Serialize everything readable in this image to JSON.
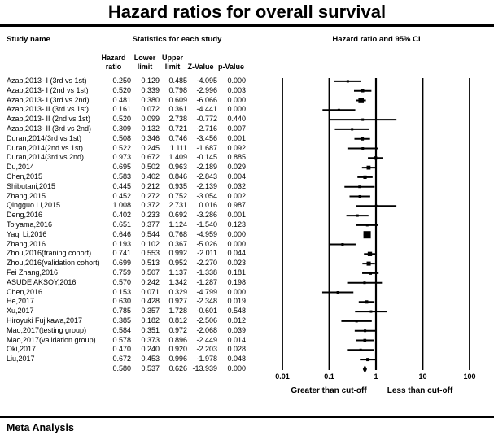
{
  "title": "Hazard ratios for overall survival",
  "header": {
    "study_col": "Study name",
    "stats_col": "Statistics for each study",
    "plot_col": "Hazard ratio and 95% CI",
    "sub": {
      "hazard_l1": "Hazard",
      "hazard_l2": "ratio",
      "lower_l1": "Lower",
      "lower_l2": "limit",
      "upper_l1": "Upper",
      "upper_l2": "limit",
      "z": "Z-Value",
      "p": "p-Value"
    }
  },
  "chart_data": {
    "type": "forest",
    "title": "Hazard ratios for overall survival",
    "x_scale": "log10",
    "x_range": [
      0.01,
      100
    ],
    "x_ticks": [
      0.01,
      0.1,
      1,
      10,
      100
    ],
    "x_tick_labels": [
      "0.01",
      "0.1",
      "1",
      "10",
      "100"
    ],
    "reference_line": 1,
    "axis_annotations": {
      "left": "Greater than cut-off",
      "right": "Less than cut-off"
    },
    "studies": [
      {
        "name": "Azab,2013- I (3rd vs 1st)",
        "hr": "0.250",
        "lower": "0.129",
        "upper": "0.485",
        "z": "-4.095",
        "p": "0.000"
      },
      {
        "name": "Azab,2013- I (2nd vs 1st)",
        "hr": "0.520",
        "lower": "0.339",
        "upper": "0.798",
        "z": "-2.996",
        "p": "0.003"
      },
      {
        "name": "Azab,2013- I (3rd vs 2nd)",
        "hr": "0.481",
        "lower": "0.380",
        "upper": "0.609",
        "z": "-6.066",
        "p": "0.000"
      },
      {
        "name": "Azab,2013- II (3rd vs 1st)",
        "hr": "0.161",
        "lower": "0.072",
        "upper": "0.361",
        "z": "-4.441",
        "p": "0.000"
      },
      {
        "name": "Azab,2013- II (2nd vs 1st)",
        "hr": "0.520",
        "lower": "0.099",
        "upper": "2.738",
        "z": "-0.772",
        "p": "0.440"
      },
      {
        "name": "Azab,2013- II (3rd vs 2nd)",
        "hr": "0.309",
        "lower": "0.132",
        "upper": "0.721",
        "z": "-2.716",
        "p": "0.007"
      },
      {
        "name": "Duran,2014(3rd vs 1st)",
        "hr": "0.508",
        "lower": "0.346",
        "upper": "0.746",
        "z": "-3.456",
        "p": "0.001"
      },
      {
        "name": "Duran,2014(2nd vs 1st)",
        "hr": "0.522",
        "lower": "0.245",
        "upper": "1.111",
        "z": "-1.687",
        "p": "0.092"
      },
      {
        "name": "Duran,2014(3rd vs 2nd)",
        "hr": "0.973",
        "lower": "0.672",
        "upper": "1.409",
        "z": "-0.145",
        "p": "0.885"
      },
      {
        "name": "Du,2014",
        "hr": "0.695",
        "lower": "0.502",
        "upper": "0.963",
        "z": "-2.189",
        "p": "0.029"
      },
      {
        "name": "Chen,2015",
        "hr": "0.583",
        "lower": "0.402",
        "upper": "0.846",
        "z": "-2.843",
        "p": "0.004"
      },
      {
        "name": "Shibutani,2015",
        "hr": "0.445",
        "lower": "0.212",
        "upper": "0.935",
        "z": "-2.139",
        "p": "0.032"
      },
      {
        "name": "Zhang,2015",
        "hr": "0.452",
        "lower": "0.272",
        "upper": "0.752",
        "z": "-3.054",
        "p": "0.002"
      },
      {
        "name": "Qingguo Li,2015",
        "hr": "1.008",
        "lower": "0.372",
        "upper": "2.731",
        "z": "0.016",
        "p": "0.987"
      },
      {
        "name": "Deng,2016",
        "hr": "0.402",
        "lower": "0.233",
        "upper": "0.692",
        "z": "-3.286",
        "p": "0.001"
      },
      {
        "name": "Toiyama,2016",
        "hr": "0.651",
        "lower": "0.377",
        "upper": "1.124",
        "z": "-1.540",
        "p": "0.123"
      },
      {
        "name": "Yaqi Li,2016",
        "hr": "0.646",
        "lower": "0.544",
        "upper": "0.768",
        "z": "-4.959",
        "p": "0.000"
      },
      {
        "name": "Zhang,2016",
        "hr": "0.193",
        "lower": "0.102",
        "upper": "0.367",
        "z": "-5.026",
        "p": "0.000"
      },
      {
        "name": "Zhou,2016(traning cohort)",
        "hr": "0.741",
        "lower": "0.553",
        "upper": "0.992",
        "z": "-2.011",
        "p": "0.044"
      },
      {
        "name": "Zhou,2016(validation cohort)",
        "hr": "0.699",
        "lower": "0.513",
        "upper": "0.952",
        "z": "-2.270",
        "p": "0.023"
      },
      {
        "name": "Fei Zhang,2016",
        "hr": "0.759",
        "lower": "0.507",
        "upper": "1.137",
        "z": "-1.338",
        "p": "0.181"
      },
      {
        "name": "ASUDE AKSOY,2016",
        "hr": "0.570",
        "lower": "0.242",
        "upper": "1.342",
        "z": "-1.287",
        "p": "0.198"
      },
      {
        "name": "Chen,2016",
        "hr": "0.153",
        "lower": "0.071",
        "upper": "0.329",
        "z": "-4.799",
        "p": "0.000"
      },
      {
        "name": "He,2017",
        "hr": "0.630",
        "lower": "0.428",
        "upper": "0.927",
        "z": "-2.348",
        "p": "0.019"
      },
      {
        "name": "Xu,2017",
        "hr": "0.785",
        "lower": "0.357",
        "upper": "1.728",
        "z": "-0.601",
        "p": "0.548"
      },
      {
        "name": "Hiroyuki Fujikawa,2017",
        "hr": "0.385",
        "lower": "0.182",
        "upper": "0.812",
        "z": "-2.506",
        "p": "0.012"
      },
      {
        "name": "Mao,2017(testing group)",
        "hr": "0.584",
        "lower": "0.351",
        "upper": "0.972",
        "z": "-2.068",
        "p": "0.039"
      },
      {
        "name": "Mao,2017(validation group)",
        "hr": "0.578",
        "lower": "0.373",
        "upper": "0.896",
        "z": "-2.449",
        "p": "0.014"
      },
      {
        "name": "Oki,2017",
        "hr": "0.470",
        "lower": "0.240",
        "upper": "0.920",
        "z": "-2.203",
        "p": "0.028"
      },
      {
        "name": "Liu,2017",
        "hr": "0.672",
        "lower": "0.453",
        "upper": "0.996",
        "z": "-1.978",
        "p": "0.048"
      }
    ],
    "overall": {
      "name": "",
      "hr": "0.580",
      "lower": "0.537",
      "upper": "0.626",
      "z": "-13.939",
      "p": "0.000"
    }
  },
  "colors": {
    "ink": "#000000",
    "background": "#ffffff"
  },
  "footer": {
    "label": "Meta Analysis"
  }
}
